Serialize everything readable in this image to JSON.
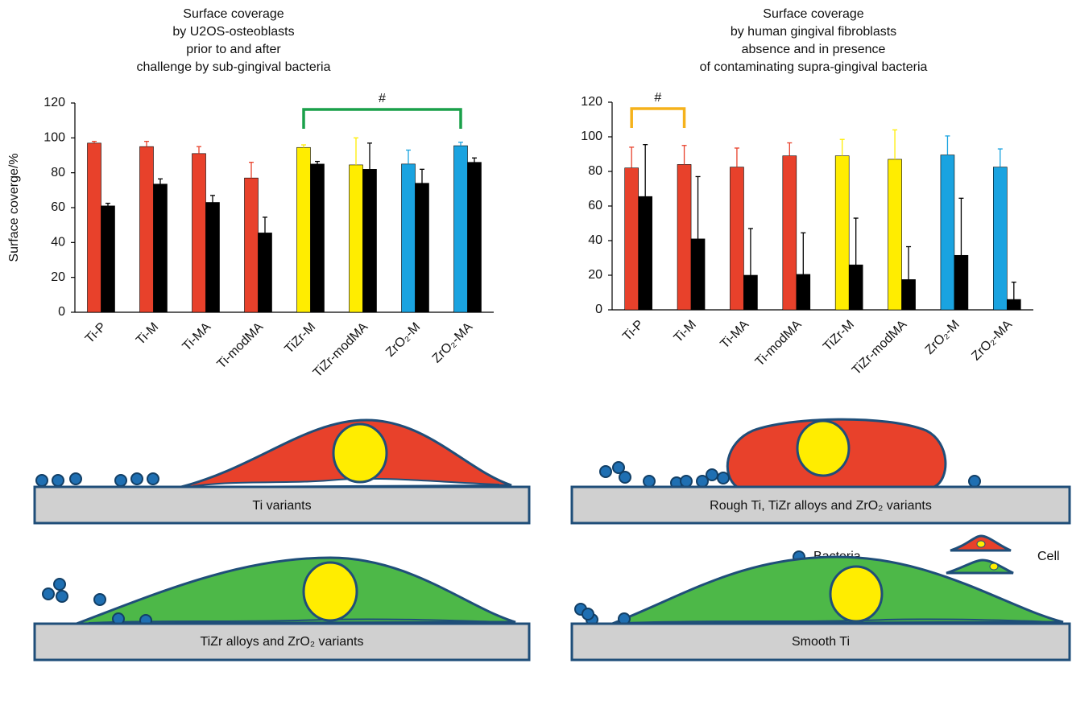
{
  "chart_data": [
    {
      "type": "bar",
      "title": [
        "Surface coverage",
        "by U2OS-osteoblasts",
        "prior to and after",
        "challenge by sub-gingival bacteria"
      ],
      "y_label": "Surface coverge/%",
      "categories": [
        "Ti-P",
        "Ti-M",
        "Ti-MA",
        "Ti-modMA",
        "TiZr-M",
        "TiZr-modMA",
        "ZrO₂-M",
        "ZrO₂-MA"
      ],
      "series": [
        {
          "colors": [
            "#e8412b",
            "#e8412b",
            "#e8412b",
            "#e8412b",
            "#ffed00",
            "#ffed00",
            "#1aa3e0",
            "#1aa3e0"
          ],
          "values": [
            97,
            95,
            91,
            77,
            94.5,
            84.5,
            85,
            95.5
          ],
          "errors": [
            1,
            3,
            4,
            9,
            1.5,
            15.5,
            8,
            2
          ]
        },
        {
          "color": "#000000",
          "values": [
            61,
            73.5,
            63,
            45.5,
            85,
            82,
            74,
            86
          ],
          "errors": [
            1.5,
            3,
            4,
            9,
            1.5,
            15,
            8,
            2.5
          ]
        }
      ],
      "ylim": [
        0,
        120
      ],
      "yticks": [
        0,
        20,
        40,
        60,
        80,
        100,
        120
      ],
      "annotation": {
        "text": "#",
        "span": [
          "TiZr-M",
          "ZrO₂-MA"
        ],
        "color": "#1aa04a"
      }
    },
    {
      "type": "bar",
      "title": [
        "Surface coverage",
        "by human gingival fibroblasts",
        "absence and in presence",
        "of contaminating supra-gingival bacteria"
      ],
      "categories": [
        "Ti-P",
        "Ti-M",
        "Ti-MA",
        "Ti-modMA",
        "TiZr-M",
        "TiZr-modMA",
        "ZrO₂-M",
        "ZrO₂-MA"
      ],
      "series": [
        {
          "colors": [
            "#e8412b",
            "#e8412b",
            "#e8412b",
            "#e8412b",
            "#ffed00",
            "#ffed00",
            "#1aa3e0",
            "#1aa3e0"
          ],
          "values": [
            82,
            84,
            82.5,
            89,
            89,
            87,
            89.5,
            82.5
          ],
          "errors": [
            12,
            11,
            11,
            7.5,
            9.5,
            17,
            11,
            10.5
          ]
        },
        {
          "color": "#000000",
          "values": [
            65.5,
            41,
            20,
            20.5,
            26,
            17.5,
            31.5,
            6
          ],
          "errors": [
            30,
            36,
            27,
            24,
            27,
            19,
            33,
            10
          ]
        }
      ],
      "ylim": [
        0,
        120
      ],
      "yticks": [
        0,
        20,
        40,
        60,
        80,
        100,
        120
      ],
      "annotation": {
        "text": "#",
        "span": [
          "Ti-P",
          "Ti-M"
        ],
        "color": "#f5b21b"
      }
    }
  ],
  "diagram": {
    "panels": [
      "Ti variants",
      "Rough Ti, TiZr alloys and ZrO₂ variants",
      "TiZr alloys and ZrO₂ variants",
      "Smooth Ti"
    ],
    "legend": {
      "bacteria": "Bacteria",
      "cell": "Cell"
    }
  }
}
